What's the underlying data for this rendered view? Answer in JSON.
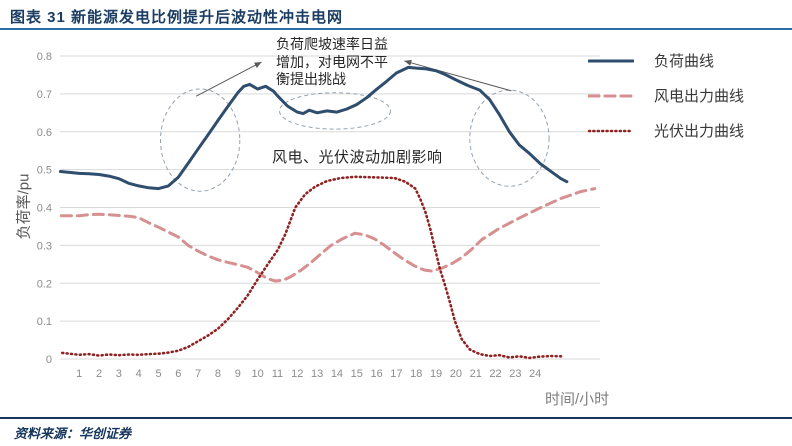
{
  "header": {
    "title": "图表 31  新能源发电比例提升后波动性冲击电网"
  },
  "footer": {
    "source": "资料来源：华创证券"
  },
  "chart_data": {
    "type": "line",
    "title": "新能源发电比例提升后波动性冲击电网",
    "xlabel": "时间/小时",
    "ylabel": "负荷率/pu",
    "ylim": [
      0,
      0.8
    ],
    "xlim": [
      0,
      27.3
    ],
    "grid": "horizontal",
    "legend_position": "right",
    "x_ticks": [
      1,
      2,
      3,
      4,
      5,
      6,
      7,
      8,
      9,
      10,
      11,
      12,
      13,
      14,
      15,
      16,
      17,
      18,
      19,
      20,
      21,
      22,
      23,
      24
    ],
    "y_ticks": [
      "0",
      "0.1",
      "0.2",
      "0.3",
      "0.4",
      "0.5",
      "0.6",
      "0.7",
      "0.8"
    ],
    "series": [
      {
        "name": "负荷曲线",
        "style": "solid",
        "color": "#2f4d6d",
        "width": 3,
        "dash": null,
        "x": [
          0.05,
          1,
          1.5,
          2,
          2.5,
          3,
          3.5,
          4,
          4.5,
          5,
          5.5,
          6,
          6.5,
          7,
          7.5,
          8,
          8.5,
          9,
          9.3,
          9.6,
          10,
          10.4,
          10.8,
          11,
          11.5,
          12,
          12.3,
          12.6,
          13,
          13.5,
          14,
          14.5,
          15,
          15.5,
          16,
          16.5,
          17,
          17.6,
          18,
          18.5,
          19,
          19.5,
          20,
          20.6,
          21.2,
          21.7,
          22.2,
          22.7,
          23.2,
          23.7,
          24.25,
          24.75,
          25.3,
          25.6
        ],
        "y": [
          0.495,
          0.49,
          0.489,
          0.487,
          0.483,
          0.476,
          0.464,
          0.457,
          0.452,
          0.45,
          0.457,
          0.48,
          0.517,
          0.555,
          0.592,
          0.63,
          0.667,
          0.703,
          0.72,
          0.725,
          0.713,
          0.72,
          0.707,
          0.695,
          0.668,
          0.652,
          0.648,
          0.657,
          0.65,
          0.655,
          0.652,
          0.66,
          0.672,
          0.69,
          0.712,
          0.733,
          0.755,
          0.77,
          0.768,
          0.766,
          0.761,
          0.75,
          0.737,
          0.722,
          0.71,
          0.685,
          0.645,
          0.6,
          0.565,
          0.543,
          0.516,
          0.497,
          0.476,
          0.468
        ]
      },
      {
        "name": "风电出力曲线",
        "style": "dashed",
        "color": "#d69090",
        "width": 3,
        "dash": "10 6",
        "x": [
          0.1,
          1,
          1.5,
          2,
          2.5,
          3,
          3.5,
          4,
          4.5,
          5,
          5.5,
          6,
          6.5,
          7,
          7.5,
          8,
          8.5,
          9,
          9.5,
          10,
          10.5,
          10.9,
          11.3,
          11.7,
          12.2,
          12.7,
          13.2,
          13.7,
          14.3,
          14.9,
          15.4,
          15.9,
          16.4,
          16.9,
          17.4,
          17.9,
          18.4,
          18.8,
          19.3,
          19.8,
          20.3,
          20.8,
          21.3,
          22.2,
          23.2,
          24.2,
          25.3,
          26.3,
          27
        ],
        "y": [
          0.378,
          0.378,
          0.381,
          0.382,
          0.381,
          0.379,
          0.377,
          0.373,
          0.36,
          0.348,
          0.335,
          0.322,
          0.3,
          0.285,
          0.272,
          0.262,
          0.255,
          0.249,
          0.242,
          0.228,
          0.212,
          0.206,
          0.208,
          0.218,
          0.235,
          0.255,
          0.278,
          0.3,
          0.318,
          0.332,
          0.328,
          0.317,
          0.3,
          0.28,
          0.262,
          0.246,
          0.235,
          0.232,
          0.24,
          0.252,
          0.268,
          0.29,
          0.315,
          0.345,
          0.372,
          0.398,
          0.424,
          0.442,
          0.45
        ]
      },
      {
        "name": "光伏出力曲线",
        "style": "dotted",
        "color": "#8f2222",
        "width": 2.6,
        "dash": "1 3.4",
        "x": [
          0.15,
          1,
          1.5,
          2,
          2.5,
          3,
          3.5,
          4,
          4.5,
          5,
          5.5,
          6,
          6.5,
          7,
          7.5,
          8,
          8.5,
          9,
          9.5,
          10,
          10.5,
          11,
          11.4,
          11.9,
          12.4,
          12.9,
          13.5,
          14.2,
          14.9,
          15.6,
          16.3,
          16.9,
          17.45,
          17.95,
          18.2,
          18.45,
          18.7,
          18.95,
          19.2,
          19.45,
          19.7,
          19.95,
          20.3,
          20.7,
          21.2,
          21.7,
          22.2,
          22.7,
          23.2,
          23.7,
          24.2,
          24.8,
          25.3
        ],
        "y": [
          0.016,
          0.011,
          0.013,
          0.009,
          0.012,
          0.01,
          0.012,
          0.011,
          0.013,
          0.014,
          0.017,
          0.022,
          0.032,
          0.047,
          0.062,
          0.08,
          0.105,
          0.135,
          0.168,
          0.21,
          0.249,
          0.287,
          0.33,
          0.4,
          0.435,
          0.455,
          0.47,
          0.478,
          0.481,
          0.48,
          0.479,
          0.478,
          0.468,
          0.45,
          0.423,
          0.39,
          0.345,
          0.29,
          0.237,
          0.195,
          0.15,
          0.1,
          0.052,
          0.025,
          0.013,
          0.008,
          0.01,
          0.004,
          0.007,
          0.003,
          0.006,
          0.008,
          0.007
        ]
      }
    ],
    "annotations": {
      "ramp_note": "负荷爬坡速率日益\n增加，对电网不平\n衡提出挑战",
      "fluctuation_note": "风电、光伏波动加剧影响",
      "ellipses": [
        {
          "cx_hour": 7.1,
          "cy_pu": 0.578,
          "rx_hour": 2.0,
          "ry_pu": 0.135
        },
        {
          "cx_hour": 13.9,
          "cy_pu": 0.655,
          "rx_hour": 2.8,
          "ry_pu": 0.048
        },
        {
          "cx_hour": 22.7,
          "cy_pu": 0.583,
          "rx_hour": 2.0,
          "ry_pu": 0.127
        }
      ],
      "arrows": [
        {
          "from_hour": 6.9,
          "from_pu": 0.694,
          "to_hour": 10.2,
          "to_pu": 0.784
        },
        {
          "from_hour": 22.8,
          "from_pu": 0.708,
          "to_hour": 17.4,
          "to_pu": 0.787
        }
      ]
    },
    "colors": {
      "grid": "#d9d9d9",
      "tick_label": "#8c8c8c",
      "ellipse_stroke": "#94a2b0",
      "arrow": "#595959",
      "title": "#1c3d63",
      "rule_top": "#2e6da4",
      "rule_bottom": "#17365d"
    }
  }
}
